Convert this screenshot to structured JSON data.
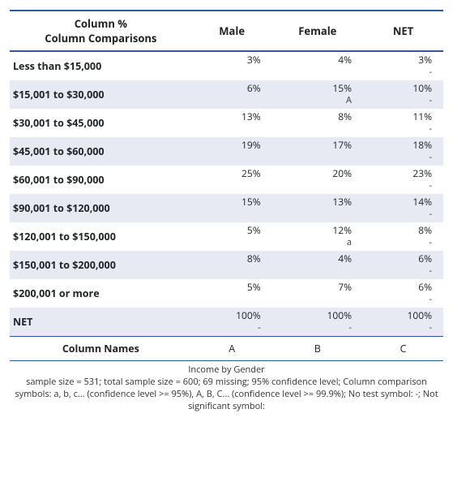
{
  "header": {
    "row_label_line1": "Column %",
    "row_label_line2": "Column Comparisons",
    "cols": [
      "Male",
      "Female",
      "NET"
    ]
  },
  "rows": [
    {
      "label": "Less than $15,000",
      "cells": [
        {
          "v": "3%",
          "s": ""
        },
        {
          "v": "4%",
          "s": ""
        },
        {
          "v": "3%",
          "s": "-"
        }
      ],
      "alt": false
    },
    {
      "label": "$15,001 to $30,000",
      "cells": [
        {
          "v": "6%",
          "s": ""
        },
        {
          "v": "15%",
          "s": "A"
        },
        {
          "v": "10%",
          "s": "-"
        }
      ],
      "alt": true
    },
    {
      "label": "$30,001 to $45,000",
      "cells": [
        {
          "v": "13%",
          "s": ""
        },
        {
          "v": "8%",
          "s": ""
        },
        {
          "v": "11%",
          "s": "-"
        }
      ],
      "alt": false
    },
    {
      "label": "$45,001 to $60,000",
      "cells": [
        {
          "v": "19%",
          "s": ""
        },
        {
          "v": "17%",
          "s": ""
        },
        {
          "v": "18%",
          "s": "-"
        }
      ],
      "alt": true
    },
    {
      "label": "$60,001 to $90,000",
      "cells": [
        {
          "v": "25%",
          "s": ""
        },
        {
          "v": "20%",
          "s": ""
        },
        {
          "v": "23%",
          "s": "-"
        }
      ],
      "alt": false
    },
    {
      "label": "$90,001 to $120,000",
      "cells": [
        {
          "v": "15%",
          "s": ""
        },
        {
          "v": "13%",
          "s": ""
        },
        {
          "v": "14%",
          "s": "-"
        }
      ],
      "alt": true
    },
    {
      "label": "$120,001 to $150,000",
      "cells": [
        {
          "v": "5%",
          "s": ""
        },
        {
          "v": "12%",
          "s": "a"
        },
        {
          "v": "8%",
          "s": "-"
        }
      ],
      "alt": false
    },
    {
      "label": "$150,001 to $200,000",
      "cells": [
        {
          "v": "8%",
          "s": ""
        },
        {
          "v": "4%",
          "s": ""
        },
        {
          "v": "6%",
          "s": "-"
        }
      ],
      "alt": true
    },
    {
      "label": "$200,001 or more",
      "cells": [
        {
          "v": "5%",
          "s": ""
        },
        {
          "v": "7%",
          "s": ""
        },
        {
          "v": "6%",
          "s": "-"
        }
      ],
      "alt": false
    }
  ],
  "net_row": {
    "label": "NET",
    "cells": [
      {
        "v": "100%",
        "s": "-"
      },
      {
        "v": "100%",
        "s": "-"
      },
      {
        "v": "100%",
        "s": "-"
      }
    ],
    "alt": true
  },
  "col_names": {
    "label": "Column Names",
    "cols": [
      "A",
      "B",
      "C"
    ]
  },
  "footer": {
    "title": "Income by Gender",
    "note": "sample size = 531; total sample size = 600; 69 missing; 95% confidence level; Column comparison symbols: a, b, c... (confidence level >= 95%), A, B, C... (confidence level >= 99.9%); No test symbol: -; Not significant symbol:"
  },
  "style": {
    "border_color": "#2b5b9e",
    "alt_row_bg": "#e7eaf3",
    "text_color": "#212529",
    "font_family": "Segoe UI",
    "header_fontsize_pt": 10,
    "body_fontsize_pt": 9,
    "footer_fontsize_pt": 8
  }
}
